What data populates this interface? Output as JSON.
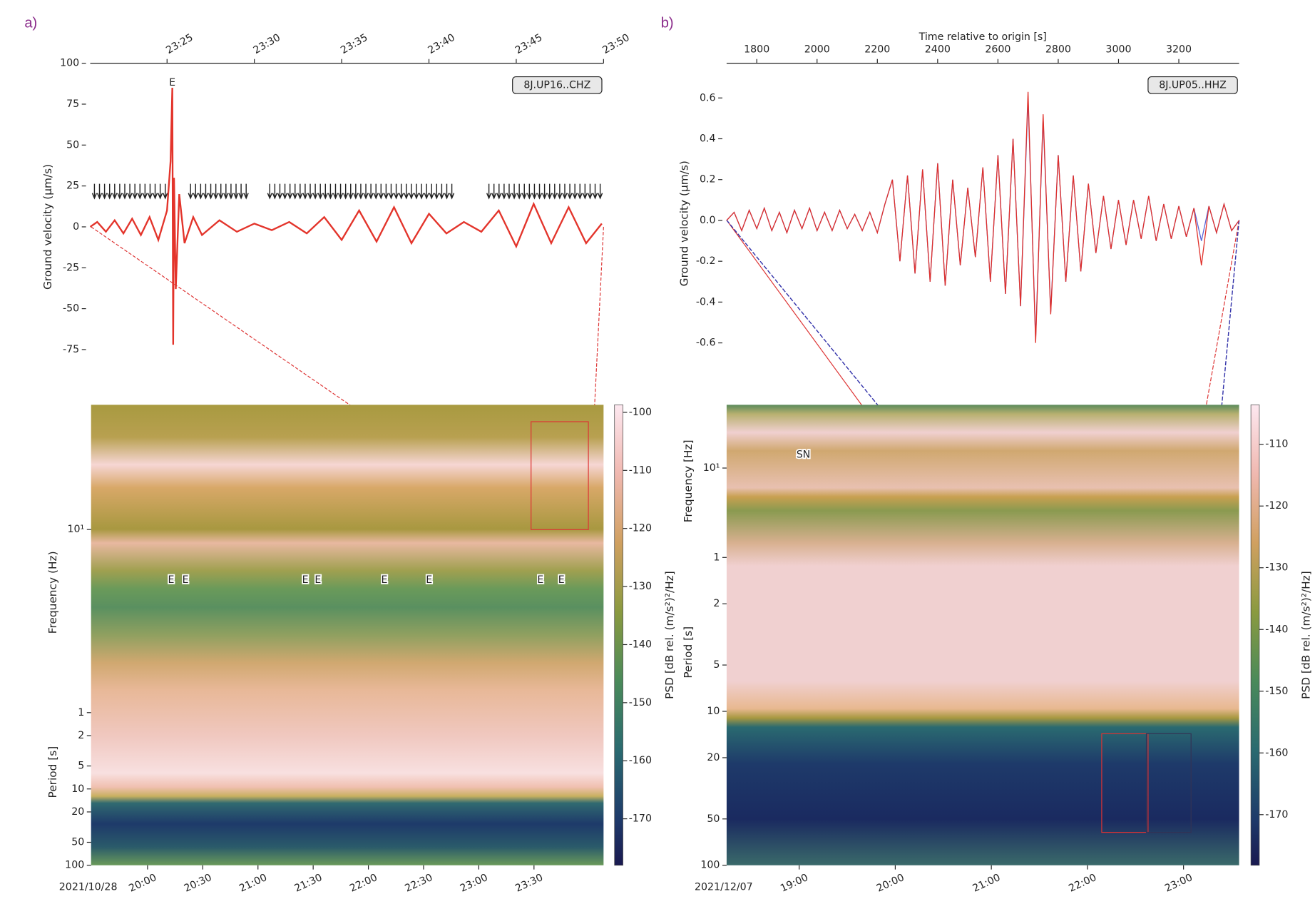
{
  "chart_data": [
    {
      "type": "line",
      "panel_label": "a)",
      "station": "8J.UP16..CHZ",
      "ylabel": "Ground velocity (µm/s)",
      "x": [
        20.6,
        21,
        21.5,
        22,
        22.5,
        23,
        23.5,
        24,
        24.5,
        25,
        25.2,
        25.3,
        25.35,
        25.4,
        25.5,
        25.7,
        26,
        26.5,
        27,
        28,
        29,
        30,
        31,
        32,
        33,
        34,
        35,
        36,
        37,
        38,
        39,
        40,
        41,
        42,
        43,
        44,
        45,
        46,
        47,
        48,
        49,
        49.9
      ],
      "series": [
        {
          "color": "#e3342b",
          "values": [
            0,
            3,
            -3,
            4,
            -4,
            5,
            -5,
            6,
            -8,
            10,
            40,
            85,
            -72,
            30,
            -38,
            20,
            -10,
            6,
            -5,
            4,
            -3,
            2,
            -2,
            3,
            -4,
            6,
            -8,
            10,
            -9,
            12,
            -10,
            8,
            -4,
            3,
            -3,
            10,
            -12,
            14,
            -10,
            12,
            -10,
            2
          ]
        }
      ],
      "xlim": [
        20.6,
        50
      ],
      "xticks": [
        {
          "value": 25,
          "label": "23:25"
        },
        {
          "value": 30,
          "label": "23:30"
        },
        {
          "value": 35,
          "label": "23:35"
        },
        {
          "value": 40,
          "label": "23:40"
        },
        {
          "value": 45,
          "label": "23:45"
        },
        {
          "value": 50,
          "label": "23:50"
        }
      ],
      "ylim": [
        -100,
        100
      ],
      "yticks": [
        100,
        75,
        50,
        25,
        0,
        -25,
        -50,
        -75
      ],
      "annotations": [
        {
          "text": "E",
          "x": 25.3,
          "y": 88
        }
      ]
    },
    {
      "type": "spectrogram",
      "date_label": "2021/10/28",
      "xlim": [
        29.3,
        307.8
      ],
      "xticks": [
        {
          "value": 60,
          "label": "20:00"
        },
        {
          "value": 90,
          "label": "20:30"
        },
        {
          "value": 120,
          "label": "21:00"
        },
        {
          "value": 150,
          "label": "21:30"
        },
        {
          "value": 180,
          "label": "22:00"
        },
        {
          "value": 210,
          "label": "22:30"
        },
        {
          "value": 240,
          "label": "23:00"
        },
        {
          "value": 270,
          "label": "23:30"
        }
      ],
      "ylabel": "Frequency (Hz)",
      "ylog": true,
      "ylim": [
        1,
        48
      ],
      "yticks": [
        {
          "value": 10,
          "label": "10¹"
        },
        1
      ],
      "period_ylabel": "Period [s]",
      "period_ylim": [
        1,
        100
      ],
      "period_yticks": [
        2,
        5,
        10,
        20,
        50,
        100
      ],
      "clabel": "PSD [dB rel. (m/s²)²/Hz]",
      "clim": [
        -178,
        -98.7
      ],
      "cticks": [
        -100,
        -110,
        -120,
        -130,
        -140,
        -150,
        -160,
        -170
      ],
      "annotations": [
        {
          "text": "E",
          "x": 72.8,
          "y": 5.3
        },
        {
          "text": "E",
          "x": 80.6,
          "y": 5.3
        },
        {
          "text": "E",
          "x": 145.7,
          "y": 5.3
        },
        {
          "text": "E",
          "x": 152.6,
          "y": 5.3
        },
        {
          "text": "E",
          "x": 188.7,
          "y": 5.3
        },
        {
          "text": "E",
          "x": 213.0,
          "y": 5.3
        },
        {
          "text": "E",
          "x": 273.5,
          "y": 5.3
        },
        {
          "text": "E",
          "x": 284.9,
          "y": 5.3
        }
      ]
    },
    {
      "type": "line",
      "panel_label": "b)",
      "station": "8J.UP05..HHZ",
      "ylabel": "Ground velocity (µm/s)",
      "xlabel": "Time relative to origin [s]",
      "x": [
        1700,
        1725,
        1750,
        1775,
        1800,
        1825,
        1850,
        1875,
        1900,
        1925,
        1950,
        1975,
        2000,
        2025,
        2050,
        2075,
        2100,
        2125,
        2150,
        2175,
        2200,
        2225,
        2250,
        2275,
        2300,
        2325,
        2350,
        2375,
        2400,
        2425,
        2450,
        2475,
        2500,
        2525,
        2550,
        2575,
        2600,
        2625,
        2650,
        2675,
        2700,
        2725,
        2750,
        2775,
        2800,
        2825,
        2850,
        2875,
        2900,
        2925,
        2950,
        2975,
        3000,
        3025,
        3050,
        3075,
        3100,
        3125,
        3150,
        3175,
        3200,
        3225,
        3250,
        3275,
        3300,
        3325,
        3350,
        3375,
        3400
      ],
      "series": [
        {
          "color": "#5a63d6",
          "values": [
            0.0,
            0.04,
            -0.05,
            0.05,
            -0.04,
            0.06,
            -0.05,
            0.04,
            -0.06,
            0.05,
            -0.04,
            0.06,
            -0.05,
            0.04,
            -0.05,
            0.05,
            -0.04,
            0.03,
            -0.05,
            0.04,
            -0.06,
            0.08,
            0.2,
            -0.2,
            0.22,
            -0.26,
            0.25,
            -0.3,
            0.28,
            -0.32,
            0.2,
            -0.22,
            0.16,
            -0.18,
            0.26,
            -0.3,
            0.32,
            -0.36,
            0.4,
            -0.42,
            0.6,
            -0.58,
            0.5,
            -0.45,
            0.32,
            -0.3,
            0.22,
            -0.25,
            0.18,
            -0.16,
            0.12,
            -0.14,
            0.1,
            -0.12,
            0.1,
            -0.09,
            0.12,
            -0.1,
            0.08,
            -0.09,
            0.07,
            -0.08,
            0.06,
            -0.1,
            0.07,
            -0.06,
            0.08,
            -0.05,
            0.0
          ]
        },
        {
          "color": "#e0302a",
          "values": [
            0.0,
            0.04,
            -0.05,
            0.05,
            -0.04,
            0.06,
            -0.05,
            0.04,
            -0.06,
            0.05,
            -0.04,
            0.06,
            -0.05,
            0.04,
            -0.05,
            0.05,
            -0.04,
            0.03,
            -0.05,
            0.04,
            -0.06,
            0.08,
            0.2,
            -0.2,
            0.22,
            -0.26,
            0.25,
            -0.3,
            0.28,
            -0.32,
            0.2,
            -0.22,
            0.16,
            -0.18,
            0.26,
            -0.3,
            0.32,
            -0.36,
            0.4,
            -0.42,
            0.63,
            -0.6,
            0.52,
            -0.46,
            0.32,
            -0.3,
            0.22,
            -0.25,
            0.18,
            -0.16,
            0.12,
            -0.14,
            0.1,
            -0.12,
            0.1,
            -0.09,
            0.12,
            -0.1,
            0.08,
            -0.09,
            0.07,
            -0.08,
            0.06,
            -0.22,
            0.07,
            -0.06,
            0.08,
            -0.05,
            0.0
          ]
        }
      ],
      "xlim": [
        1700,
        3400
      ],
      "xticks": [
        1800,
        2000,
        2200,
        2400,
        2600,
        2800,
        3000,
        3200
      ],
      "ylim": [
        -0.8,
        0.77
      ],
      "yticks": [
        0.6,
        0.4,
        0.2,
        {
          "value": 0,
          "label": "0.0"
        },
        -0.2,
        -0.4,
        -0.6
      ]
    },
    {
      "type": "spectrogram",
      "date_label": "2021/12/07",
      "xlim": [
        14.7,
        334.7
      ],
      "xticks": [
        {
          "value": 60,
          "label": "19:00"
        },
        {
          "value": 120,
          "label": "20:00"
        },
        {
          "value": 180,
          "label": "21:00"
        },
        {
          "value": 240,
          "label": "22:00"
        },
        {
          "value": 300,
          "label": "23:00"
        }
      ],
      "ylabel": "Frequency [Hz]",
      "ylog": true,
      "ylim": [
        1,
        51
      ],
      "yticks": [
        {
          "value": 10,
          "label": "10¹"
        },
        1
      ],
      "period_ylabel": "Period [s]",
      "period_ylim": [
        1,
        100
      ],
      "period_yticks": [
        2,
        5,
        10,
        20,
        50,
        100
      ],
      "clabel": "PSD [dB rel. (m/s²)²/Hz]",
      "clim": [
        -178.2,
        -103.6
      ],
      "cticks": [
        -110,
        -120,
        -130,
        -140,
        -150,
        -160,
        -170
      ],
      "annotations": [
        {
          "text": "SN",
          "x": 62.6,
          "y": 14
        }
      ]
    }
  ]
}
